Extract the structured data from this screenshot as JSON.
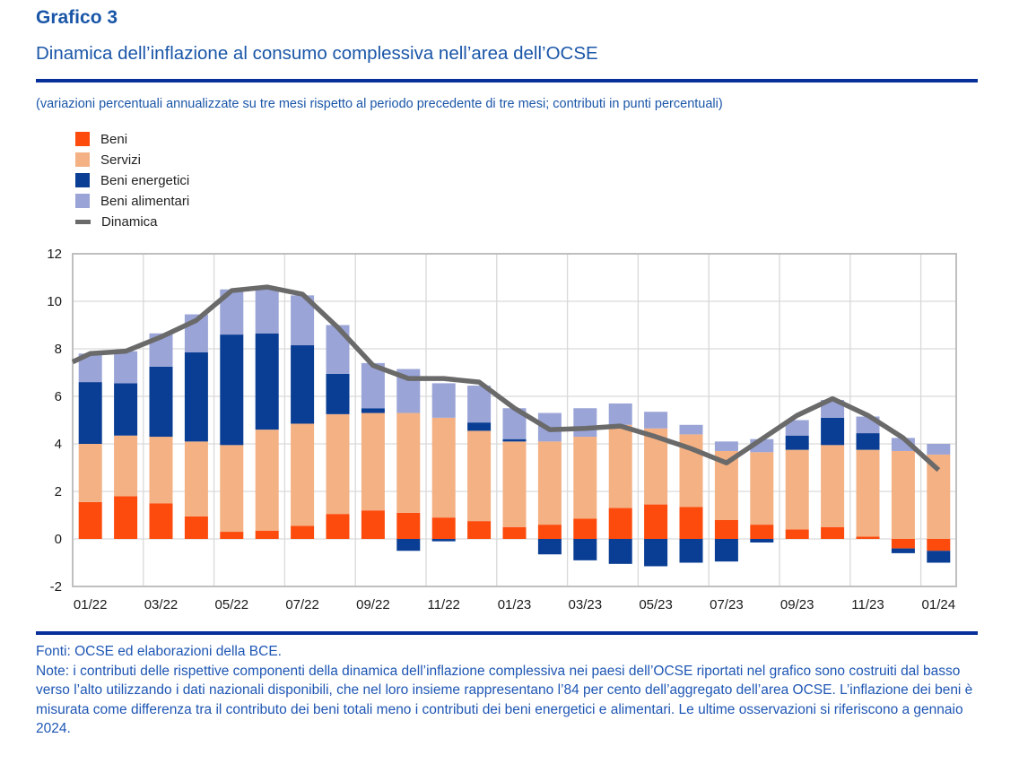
{
  "header": {
    "kicker": "Grafico 3",
    "title": "Dinamica dell’inflazione al consumo complessiva nell’area dell’OCSE",
    "note": "(variazioni percentuali annualizzate su tre mesi rispetto al periodo precedente di tre mesi; contributi in punti percentuali)"
  },
  "colors": {
    "title_blue": "#1A56A8",
    "rule_blue": "#07309A",
    "grid": "#D9D9D9",
    "plot_border": "#BFBFBF",
    "axis_text": "#1A1A1A"
  },
  "chart_data": {
    "type": "bar",
    "stacked": true,
    "grid": true,
    "legend_position": "top-left",
    "title": "Dinamica dell’inflazione al consumo complessiva nell’area dell’OCSE",
    "subtitle": "(variazioni percentuali annualizzate su tre mesi rispetto al periodo precedente di tre mesi; contributi in punti percentuali)",
    "xlabel": "",
    "ylabel": "",
    "ylim": [
      -2,
      12
    ],
    "ytick_step": 2,
    "categories": [
      "01/22",
      "02/22",
      "03/22",
      "04/22",
      "05/22",
      "06/22",
      "07/22",
      "08/22",
      "09/22",
      "10/22",
      "11/22",
      "12/22",
      "01/23",
      "02/23",
      "03/23",
      "04/23",
      "05/23",
      "06/23",
      "07/23",
      "08/23",
      "09/23",
      "10/23",
      "11/23",
      "12/23",
      "01/24"
    ],
    "x_tick_labels": [
      "01/22",
      "03/22",
      "05/22",
      "07/22",
      "09/22",
      "11/22",
      "01/23",
      "03/23",
      "05/23",
      "07/23",
      "09/23",
      "11/23",
      "01/24"
    ],
    "dinamica_edge_value": 7.45,
    "series": [
      {
        "name": "Beni",
        "color": "#FC4B0C",
        "values": [
          1.55,
          1.8,
          1.5,
          0.95,
          0.3,
          0.35,
          0.55,
          1.05,
          1.2,
          1.1,
          0.9,
          0.75,
          0.5,
          0.6,
          0.85,
          1.3,
          1.45,
          1.35,
          0.8,
          0.6,
          0.4,
          0.5,
          0.1,
          -0.4,
          -0.5
        ]
      },
      {
        "name": "Servizi",
        "color": "#F3B184",
        "values": [
          2.45,
          2.55,
          2.8,
          3.15,
          3.65,
          4.25,
          4.3,
          4.2,
          4.1,
          4.2,
          4.2,
          3.8,
          3.6,
          3.5,
          3.45,
          3.5,
          3.2,
          3.05,
          2.9,
          3.05,
          3.35,
          3.45,
          3.65,
          3.7,
          3.55
        ]
      },
      {
        "name": "Beni energetici",
        "color": "#0A3D94",
        "values": [
          2.6,
          2.2,
          2.95,
          3.75,
          4.65,
          4.05,
          3.3,
          1.7,
          0.2,
          -0.5,
          -0.1,
          0.35,
          0.1,
          -0.65,
          -0.9,
          -1.05,
          -1.15,
          -1.0,
          -0.95,
          -0.15,
          0.6,
          1.15,
          0.7,
          -0.2,
          -0.5
        ]
      },
      {
        "name": "Beni alimentari",
        "color": "#9AA4D6",
        "values": [
          1.2,
          1.35,
          1.4,
          1.6,
          1.9,
          1.95,
          2.1,
          2.05,
          1.9,
          1.85,
          1.45,
          1.55,
          1.3,
          1.2,
          1.2,
          0.9,
          0.7,
          0.4,
          0.4,
          0.55,
          0.65,
          0.75,
          0.7,
          0.55,
          0.45
        ]
      },
      {
        "name": "Dinamica",
        "type": "line",
        "color": "#6A6A6A",
        "values": [
          7.8,
          7.9,
          8.5,
          9.2,
          10.45,
          10.6,
          10.3,
          8.9,
          7.3,
          6.75,
          6.75,
          6.6,
          5.5,
          4.6,
          4.65,
          4.75,
          4.3,
          3.8,
          3.2,
          4.2,
          5.2,
          5.9,
          5.2,
          4.25,
          2.9
        ]
      }
    ]
  },
  "footer": {
    "fonti": "Fonti: OCSE ed elaborazioni della BCE.",
    "note": "Note: i contributi delle rispettive componenti della dinamica dell’inflazione complessiva nei paesi dell’OCSE riportati nel grafico sono costruiti dal basso verso l’alto utilizzando i dati nazionali disponibili, che nel loro insieme rappresentano l’84 per cento dell’aggregato dell’area OCSE. L’inflazione dei beni è misurata come differenza tra il contributo dei beni totali meno i contributi dei beni energetici e alimentari. Le ultime osservazioni si riferiscono a gennaio 2024."
  }
}
